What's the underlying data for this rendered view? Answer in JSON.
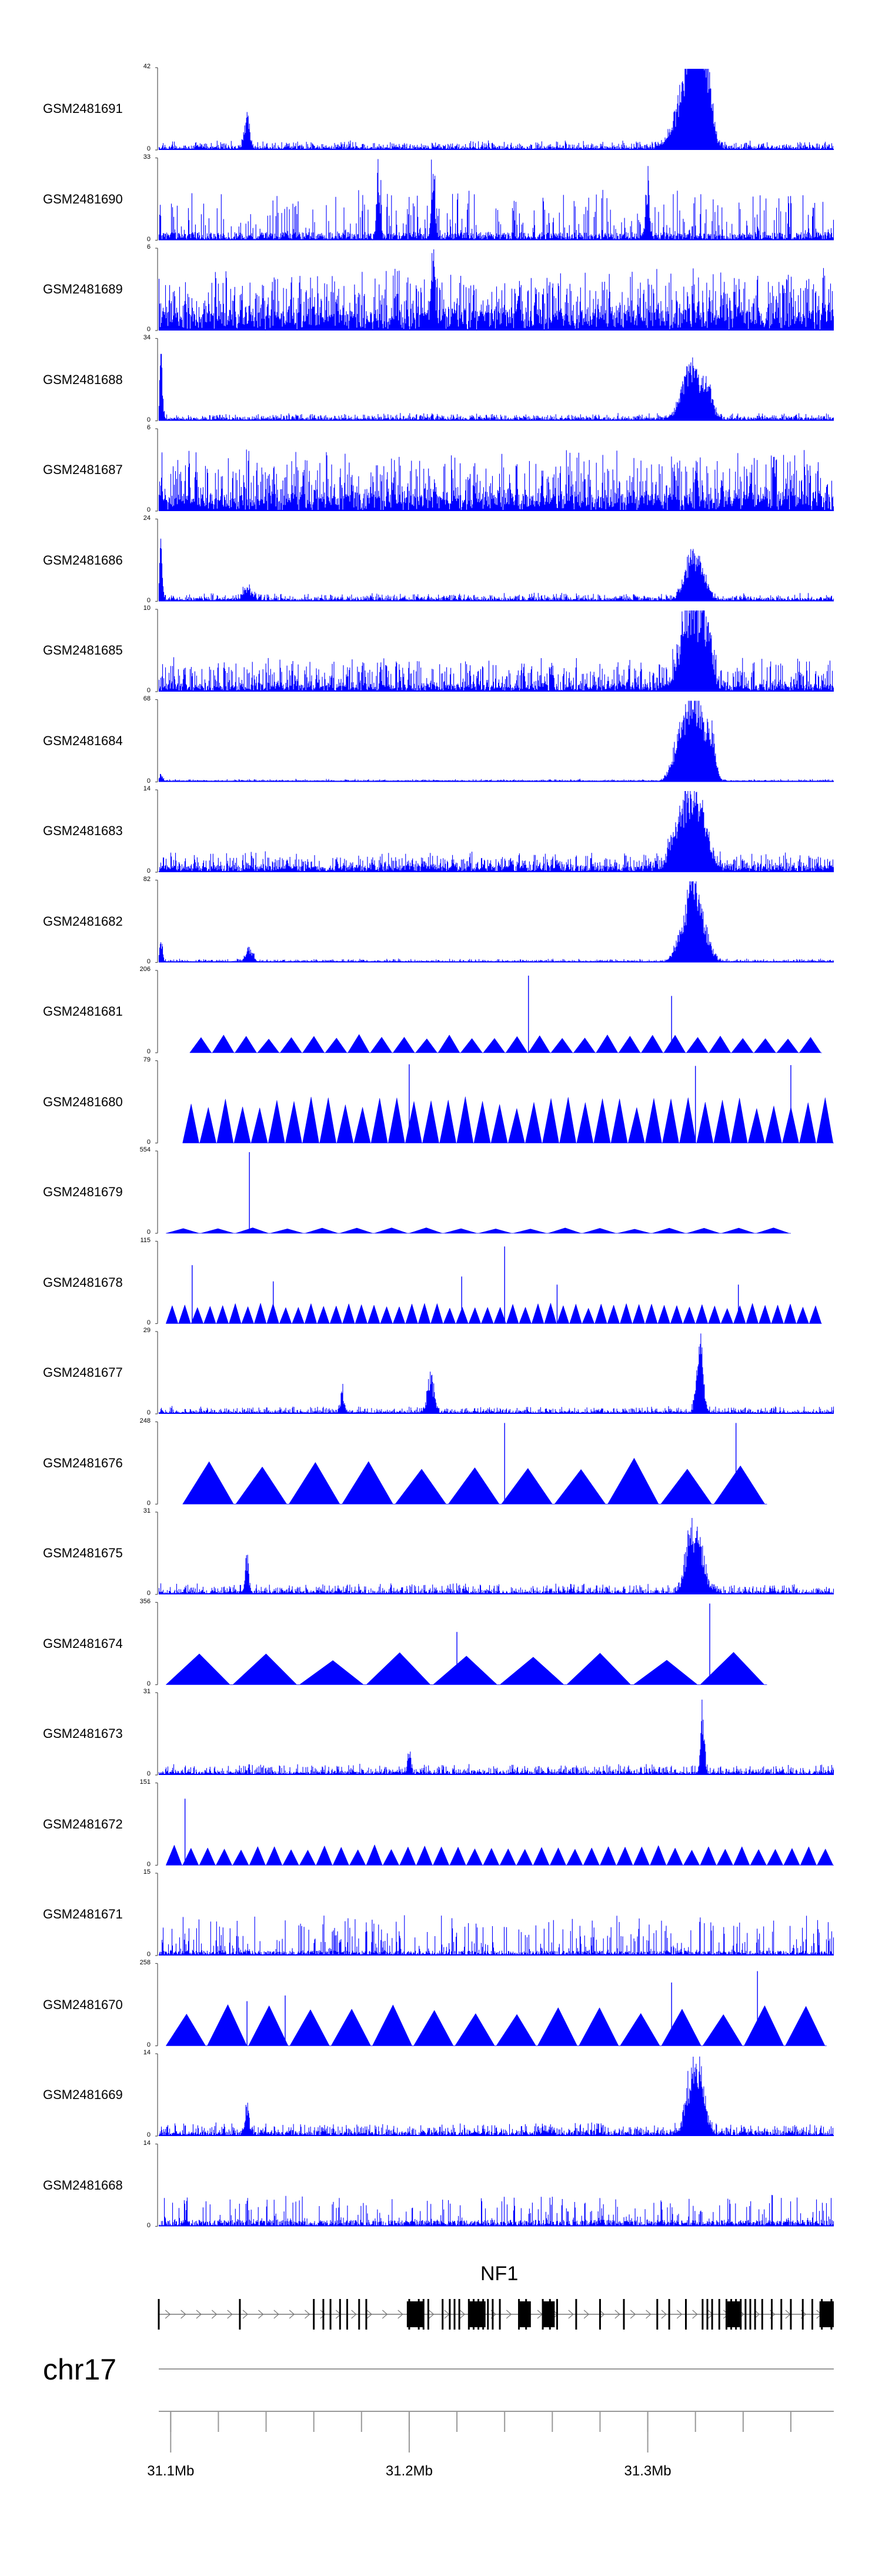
{
  "chart_data": {
    "type": "area",
    "title": "",
    "chromosome": "chr17",
    "xlim": [
      31.095,
      31.378
    ],
    "xunit": "Mb",
    "axis_ticks": [
      {
        "value": 31.1,
        "label": "31.1Mb"
      },
      {
        "value": 31.2,
        "label": "31.2Mb"
      },
      {
        "value": 31.3,
        "label": "31.3Mb"
      }
    ],
    "minor_ticks": [
      31.1,
      31.12,
      31.14,
      31.16,
      31.18,
      31.2,
      31.22,
      31.24,
      31.26,
      31.28,
      31.3,
      31.32,
      31.34,
      31.36
    ],
    "gene": {
      "name": "NF1",
      "start": 31.095,
      "end": 31.378,
      "strand": "+",
      "exons": [
        31.095,
        31.129,
        31.16,
        31.164,
        31.167,
        31.171,
        31.174,
        31.179,
        31.182,
        31.2,
        31.204,
        31.206,
        31.208,
        31.214,
        31.217,
        31.219,
        31.221,
        31.225,
        31.227,
        31.229,
        31.231,
        31.233,
        31.235,
        31.238,
        31.246,
        31.249,
        31.256,
        31.259,
        31.262,
        31.27,
        31.28,
        31.29,
        31.304,
        31.309,
        31.316,
        31.323,
        31.325,
        31.327,
        31.33,
        31.333,
        31.335,
        31.337,
        31.339,
        31.341,
        31.343,
        31.345,
        31.348,
        31.352,
        31.356,
        31.36,
        31.365,
        31.369,
        31.373,
        31.377
      ],
      "thick_exons": [
        [
          31.199,
          31.206
        ],
        [
          31.225,
          31.232
        ],
        [
          31.246,
          31.251
        ],
        [
          31.256,
          31.261
        ],
        [
          31.333,
          31.339
        ],
        [
          31.372,
          31.378
        ]
      ]
    },
    "series": [
      {
        "name": "GSM2481691",
        "ymax": 42,
        "ymin": 0,
        "style": "signal",
        "baseline": 0.04,
        "noise": 0.08,
        "sparse": false,
        "peaks": [
          {
            "x": 31.132,
            "h": 0.45,
            "w": 0.0015
          },
          {
            "x": 31.315,
            "h": 0.6,
            "w": 0.006
          },
          {
            "x": 31.318,
            "h": 0.9,
            "w": 0.004
          },
          {
            "x": 31.322,
            "h": 1.0,
            "w": 0.004
          },
          {
            "x": 31.325,
            "h": 0.75,
            "w": 0.003
          }
        ]
      },
      {
        "name": "GSM2481690",
        "ymax": 33,
        "ymin": 0,
        "style": "signal",
        "baseline": 0.1,
        "noise": 0.55,
        "sparse": true,
        "peaks": [
          {
            "x": 31.187,
            "h": 0.9,
            "w": 0.001
          },
          {
            "x": 31.21,
            "h": 0.8,
            "w": 0.001
          },
          {
            "x": 31.3,
            "h": 0.85,
            "w": 0.001
          }
        ]
      },
      {
        "name": "GSM2481689",
        "ymax": 6,
        "ymin": 0,
        "style": "signal",
        "baseline": 0.25,
        "noise": 0.55,
        "sparse": false,
        "peaks": [
          {
            "x": 31.21,
            "h": 0.9,
            "w": 0.001
          }
        ]
      },
      {
        "name": "GSM2481688",
        "ymax": 34,
        "ymin": 0,
        "style": "signal",
        "baseline": 0.04,
        "noise": 0.06,
        "sparse": false,
        "peaks": [
          {
            "x": 31.096,
            "h": 1.0,
            "w": 0.0008
          },
          {
            "x": 31.316,
            "h": 0.5,
            "w": 0.004
          },
          {
            "x": 31.32,
            "h": 0.55,
            "w": 0.004
          },
          {
            "x": 31.325,
            "h": 0.4,
            "w": 0.003
          }
        ]
      },
      {
        "name": "GSM2481687",
        "ymax": 6,
        "ymin": 0,
        "style": "signal",
        "baseline": 0.2,
        "noise": 0.6,
        "sparse": false,
        "peaks": []
      },
      {
        "name": "GSM2481686",
        "ymax": 24,
        "ymin": 0,
        "style": "signal",
        "baseline": 0.04,
        "noise": 0.07,
        "sparse": false,
        "peaks": [
          {
            "x": 31.096,
            "h": 0.9,
            "w": 0.0008
          },
          {
            "x": 31.132,
            "h": 0.15,
            "w": 0.003
          },
          {
            "x": 31.318,
            "h": 0.55,
            "w": 0.004
          },
          {
            "x": 31.322,
            "h": 0.35,
            "w": 0.004
          }
        ]
      },
      {
        "name": "GSM2481685",
        "ymax": 10,
        "ymin": 0,
        "style": "signal",
        "baseline": 0.08,
        "noise": 0.35,
        "sparse": false,
        "peaks": [
          {
            "x": 31.315,
            "h": 0.7,
            "w": 0.004
          },
          {
            "x": 31.32,
            "h": 0.9,
            "w": 0.004
          },
          {
            "x": 31.325,
            "h": 0.8,
            "w": 0.003
          }
        ]
      },
      {
        "name": "GSM2481684",
        "ymax": 68,
        "ymin": 0,
        "style": "signal",
        "baseline": 0.02,
        "noise": 0.02,
        "sparse": false,
        "peaks": [
          {
            "x": 31.096,
            "h": 0.1,
            "w": 0.0008
          },
          {
            "x": 31.313,
            "h": 0.55,
            "w": 0.004
          },
          {
            "x": 31.318,
            "h": 0.95,
            "w": 0.004
          },
          {
            "x": 31.323,
            "h": 0.85,
            "w": 0.004
          },
          {
            "x": 31.327,
            "h": 0.5,
            "w": 0.002
          }
        ]
      },
      {
        "name": "GSM2481683",
        "ymax": 14,
        "ymin": 0,
        "style": "signal",
        "baseline": 0.08,
        "noise": 0.18,
        "sparse": false,
        "peaks": [
          {
            "x": 31.313,
            "h": 0.55,
            "w": 0.005
          },
          {
            "x": 31.318,
            "h": 0.9,
            "w": 0.004
          },
          {
            "x": 31.323,
            "h": 0.7,
            "w": 0.004
          }
        ]
      },
      {
        "name": "GSM2481682",
        "ymax": 82,
        "ymin": 0,
        "style": "signal",
        "baseline": 0.02,
        "noise": 0.03,
        "sparse": false,
        "peaks": [
          {
            "x": 31.096,
            "h": 0.3,
            "w": 0.0008
          },
          {
            "x": 31.133,
            "h": 0.2,
            "w": 0.002
          },
          {
            "x": 31.315,
            "h": 0.5,
            "w": 0.004
          },
          {
            "x": 31.319,
            "h": 0.95,
            "w": 0.003
          },
          {
            "x": 31.323,
            "h": 0.55,
            "w": 0.004
          }
        ]
      },
      {
        "name": "GSM2481681",
        "ymax": 206,
        "ymin": 0,
        "style": "triangles",
        "baseline": 0.2,
        "noise": 0,
        "sparse": false,
        "range": [
          31.108,
          31.373
        ],
        "count": 28,
        "spikes": [
          {
            "x": 31.25,
            "h": 0.95
          },
          {
            "x": 31.31,
            "h": 0.7
          }
        ]
      },
      {
        "name": "GSM2481680",
        "ymax": 79,
        "ymin": 0,
        "style": "triangles",
        "baseline": 0.5,
        "noise": 0,
        "sparse": false,
        "range": [
          31.105,
          31.378
        ],
        "count": 38,
        "spikes": [
          {
            "x": 31.2,
            "h": 0.97
          },
          {
            "x": 31.32,
            "h": 0.95
          },
          {
            "x": 31.36,
            "h": 0.96
          }
        ]
      },
      {
        "name": "GSM2481679",
        "ymax": 554,
        "ymin": 0,
        "style": "triangles",
        "baseline": 0.06,
        "noise": 0,
        "sparse": false,
        "range": [
          31.098,
          31.36
        ],
        "count": 18,
        "spikes": [
          {
            "x": 31.133,
            "h": 1.0
          }
        ]
      },
      {
        "name": "GSM2481678",
        "ymax": 115,
        "ymin": 0,
        "style": "triangles",
        "baseline": 0.22,
        "noise": 0,
        "sparse": false,
        "range": [
          31.098,
          31.373
        ],
        "count": 52,
        "spikes": [
          {
            "x": 31.109,
            "h": 0.72
          },
          {
            "x": 31.143,
            "h": 0.52
          },
          {
            "x": 31.222,
            "h": 0.58
          },
          {
            "x": 31.24,
            "h": 0.95
          },
          {
            "x": 31.262,
            "h": 0.48
          },
          {
            "x": 31.338,
            "h": 0.48
          }
        ]
      },
      {
        "name": "GSM2481677",
        "ymax": 29,
        "ymin": 0,
        "style": "signal",
        "baseline": 0.03,
        "noise": 0.07,
        "sparse": false,
        "peaks": [
          {
            "x": 31.172,
            "h": 0.35,
            "w": 0.001
          },
          {
            "x": 31.209,
            "h": 0.5,
            "w": 0.002
          },
          {
            "x": 31.322,
            "h": 0.95,
            "w": 0.002
          }
        ]
      },
      {
        "name": "GSM2481676",
        "ymax": 248,
        "ymin": 0,
        "style": "triangles",
        "baseline": 0.5,
        "noise": 0,
        "sparse": false,
        "range": [
          31.105,
          31.35
        ],
        "count": 11,
        "spikes": [
          {
            "x": 31.24,
            "h": 1.0
          },
          {
            "x": 31.337,
            "h": 1.0
          }
        ]
      },
      {
        "name": "GSM2481675",
        "ymax": 31,
        "ymin": 0,
        "style": "signal",
        "baseline": 0.04,
        "noise": 0.1,
        "sparse": false,
        "peaks": [
          {
            "x": 31.132,
            "h": 0.6,
            "w": 0.001
          },
          {
            "x": 31.318,
            "h": 0.9,
            "w": 0.003
          },
          {
            "x": 31.322,
            "h": 0.6,
            "w": 0.003
          }
        ]
      },
      {
        "name": "GSM2481674",
        "ymax": 356,
        "ymin": 0,
        "style": "triangles",
        "baseline": 0.35,
        "noise": 0,
        "sparse": false,
        "range": [
          31.098,
          31.35
        ],
        "count": 9,
        "spikes": [
          {
            "x": 31.22,
            "h": 0.65
          },
          {
            "x": 31.326,
            "h": 1.0
          }
        ]
      },
      {
        "name": "GSM2481673",
        "ymax": 31,
        "ymin": 0,
        "style": "signal",
        "baseline": 0.04,
        "noise": 0.1,
        "sparse": false,
        "peaks": [
          {
            "x": 31.323,
            "h": 0.95,
            "w": 0.001
          },
          {
            "x": 31.2,
            "h": 0.3,
            "w": 0.001
          }
        ]
      },
      {
        "name": "GSM2481672",
        "ymax": 151,
        "ymin": 0,
        "style": "triangles",
        "baseline": 0.22,
        "noise": 0,
        "sparse": false,
        "range": [
          31.098,
          31.378
        ],
        "count": 40,
        "spikes": [
          {
            "x": 31.106,
            "h": 0.82
          }
        ]
      },
      {
        "name": "GSM2481671",
        "ymax": 15,
        "ymin": 0,
        "style": "signal",
        "baseline": 0.06,
        "noise": 0.45,
        "sparse": true,
        "peaks": []
      },
      {
        "name": "GSM2481670",
        "ymax": 258,
        "ymin": 0,
        "style": "triangles",
        "baseline": 0.45,
        "noise": 0,
        "sparse": false,
        "range": [
          31.098,
          31.375
        ],
        "count": 16,
        "spikes": [
          {
            "x": 31.132,
            "h": 0.55
          },
          {
            "x": 31.148,
            "h": 0.62
          },
          {
            "x": 31.31,
            "h": 0.78
          },
          {
            "x": 31.346,
            "h": 0.92
          }
        ]
      },
      {
        "name": "GSM2481669",
        "ymax": 14,
        "ymin": 0,
        "style": "signal",
        "baseline": 0.05,
        "noise": 0.12,
        "sparse": false,
        "peaks": [
          {
            "x": 31.132,
            "h": 0.45,
            "w": 0.001
          },
          {
            "x": 31.318,
            "h": 0.8,
            "w": 0.003
          },
          {
            "x": 31.322,
            "h": 0.9,
            "w": 0.003
          }
        ]
      },
      {
        "name": "GSM2481668",
        "ymax": 14,
        "ymin": 0,
        "style": "signal",
        "baseline": 0.08,
        "noise": 0.35,
        "sparse": true,
        "peaks": []
      }
    ],
    "colors": {
      "fill": "#0000ff",
      "axis": "#555555",
      "gene": "#000000",
      "arrow": "#777777"
    }
  }
}
